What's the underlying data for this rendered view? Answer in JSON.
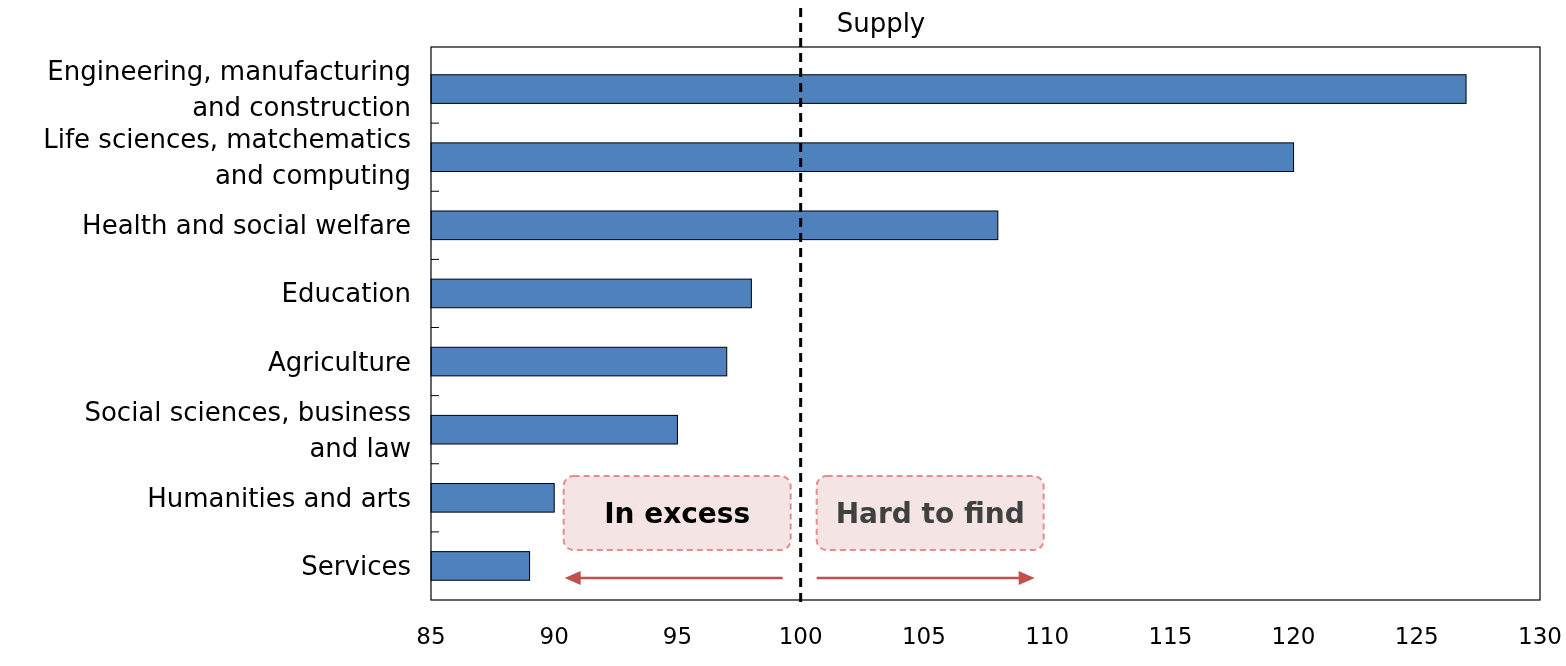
{
  "chart_data": {
    "type": "bar",
    "orientation": "horizontal",
    "categories": [
      "Engineering, manufacturing and construction",
      "Life sciences, matchematics and computing",
      "Health and social welfare",
      "Education",
      "Agriculture",
      "Social sciences, business and law",
      "Humanities and arts",
      "Services"
    ],
    "values": [
      127,
      120,
      108,
      98,
      97,
      95,
      90,
      89
    ],
    "color": "#4f81bd",
    "xlim": [
      85,
      130
    ],
    "xticks": [
      85,
      90,
      95,
      100,
      105,
      110,
      115,
      120,
      125,
      130
    ],
    "grid": false,
    "ref_lines": [
      {
        "axis": "x",
        "value": 100,
        "label": "Supply",
        "color": "#000000",
        "line_style": "dashed"
      }
    ],
    "annotations": [
      "In excess",
      "Hard to find"
    ]
  }
}
